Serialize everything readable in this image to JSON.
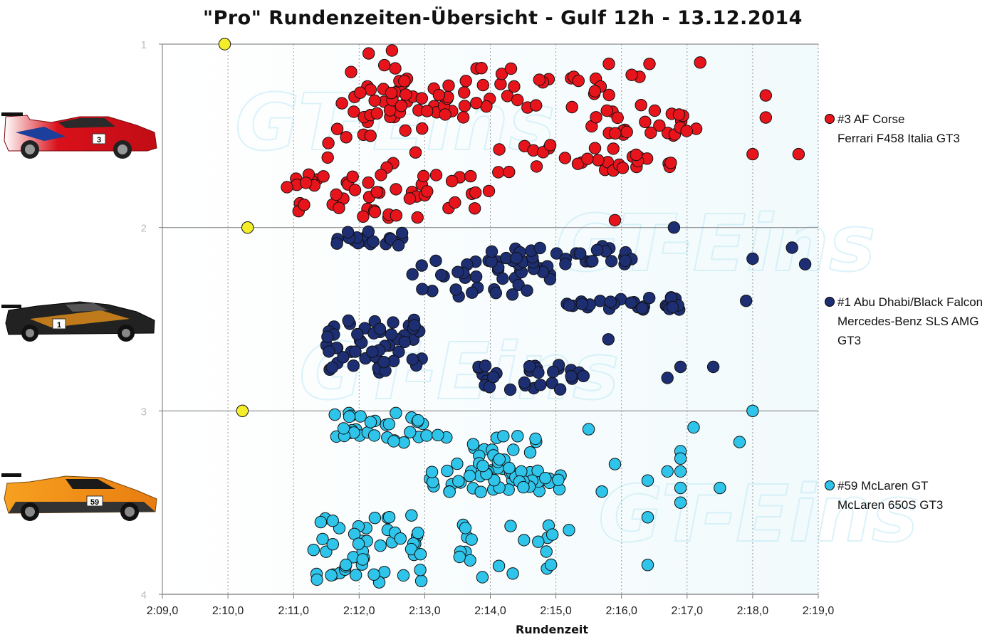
{
  "colors": {
    "af_corse": "#e8141c",
    "black_falcon": "#1d2f72",
    "mclaren": "#2fc4ea",
    "fastest": "#f4ee2a"
  },
  "chart_data": {
    "type": "scatter",
    "title": "\"Pro\" Rundenzeiten-Übersicht - Gulf 12h - 13.12.2014",
    "xlabel": "Rundenzeit",
    "ylabel": "",
    "x_ticks": [
      "2:09,0",
      "2:10,0",
      "2:11,0",
      "2:12,0",
      "2:13,0",
      "2:14,0",
      "2:15,0",
      "2:16,0",
      "2:17,0",
      "2:18,0",
      "2:19,0"
    ],
    "y_ticks": [
      "1",
      "2",
      "3",
      "4"
    ],
    "xlim_seconds": [
      129,
      139
    ],
    "ylim": [
      1,
      4
    ],
    "grid": "vertical and horizontal major gridlines",
    "legend_position": "right",
    "series": [
      {
        "key": "af_corse",
        "legend_line1": "#3 AF Corse",
        "legend_line2": "Ferrari F458 Italia GT3",
        "legend_line3": "",
        "band": [
          1,
          2
        ],
        "clusters": [
          {
            "x_min_s": 131.5,
            "x_max_s": 133.0,
            "count": 45,
            "band_pos": [
              0.03,
              0.95
            ]
          },
          {
            "x_min_s": 132.0,
            "x_max_s": 134.0,
            "count": 35,
            "band_pos": [
              0.2,
              0.4
            ]
          },
          {
            "x_min_s": 133.5,
            "x_max_s": 136.5,
            "count": 30,
            "band_pos": [
              0.1,
              0.35
            ]
          },
          {
            "x_min_s": 135.5,
            "x_max_s": 137.3,
            "count": 25,
            "band_pos": [
              0.35,
              0.5
            ]
          },
          {
            "x_min_s": 134.0,
            "x_max_s": 136.8,
            "count": 30,
            "band_pos": [
              0.55,
              0.7
            ]
          },
          {
            "x_min_s": 131.0,
            "x_max_s": 134.0,
            "count": 40,
            "band_pos": [
              0.7,
              0.95
            ]
          }
        ],
        "outliers": [
          [
            138.2,
            0.28
          ],
          [
            138.2,
            0.4
          ],
          [
            138.0,
            0.6
          ],
          [
            138.7,
            0.6
          ],
          [
            137.2,
            0.1
          ],
          [
            130.9,
            0.78
          ],
          [
            135.9,
            0.96
          ]
        ]
      },
      {
        "key": "black_falcon",
        "legend_line1": "#1 Abu Dhabi/Black Falcon",
        "legend_line2": "Mercedes-Benz SLS AMG",
        "legend_line3": "GT3",
        "band": [
          2,
          3
        ],
        "clusters": [
          {
            "x_min_s": 131.5,
            "x_max_s": 132.7,
            "count": 20,
            "band_pos": [
              0.02,
              0.1
            ]
          },
          {
            "x_min_s": 132.8,
            "x_max_s": 135.0,
            "count": 40,
            "band_pos": [
              0.18,
              0.38
            ]
          },
          {
            "x_min_s": 134.0,
            "x_max_s": 136.3,
            "count": 30,
            "band_pos": [
              0.1,
              0.2
            ]
          },
          {
            "x_min_s": 135.0,
            "x_max_s": 136.9,
            "count": 30,
            "band_pos": [
              0.38,
              0.45
            ]
          },
          {
            "x_min_s": 131.5,
            "x_max_s": 133.0,
            "count": 55,
            "band_pos": [
              0.5,
              0.8
            ]
          },
          {
            "x_min_s": 133.8,
            "x_max_s": 135.5,
            "count": 30,
            "band_pos": [
              0.75,
              0.9
            ]
          }
        ],
        "outliers": [
          [
            136.8,
            0.0
          ],
          [
            138.6,
            0.11
          ],
          [
            138.8,
            0.2
          ],
          [
            138.0,
            0.17
          ],
          [
            137.4,
            0.76
          ],
          [
            136.9,
            0.76
          ],
          [
            136.7,
            0.82
          ],
          [
            135.8,
            0.61
          ],
          [
            137.9,
            0.4
          ]
        ]
      },
      {
        "key": "mclaren",
        "legend_line1": "#59 McLaren GT",
        "legend_line2": "McLaren 650S GT3",
        "legend_line3": "",
        "band": [
          3,
          4
        ],
        "clusters": [
          {
            "x_min_s": 131.6,
            "x_max_s": 133.0,
            "count": 30,
            "band_pos": [
              0.0,
              0.18
            ]
          },
          {
            "x_min_s": 133.0,
            "x_max_s": 134.8,
            "count": 45,
            "band_pos": [
              0.12,
              0.45
            ]
          },
          {
            "x_min_s": 133.5,
            "x_max_s": 135.2,
            "count": 25,
            "band_pos": [
              0.3,
              0.45
            ]
          },
          {
            "x_min_s": 131.3,
            "x_max_s": 133.0,
            "count": 50,
            "band_pos": [
              0.55,
              0.95
            ]
          },
          {
            "x_min_s": 133.5,
            "x_max_s": 135.0,
            "count": 20,
            "band_pos": [
              0.6,
              0.92
            ]
          }
        ],
        "outliers": [
          [
            138.0,
            0.0
          ],
          [
            137.1,
            0.09
          ],
          [
            137.8,
            0.17
          ],
          [
            136.9,
            0.22
          ],
          [
            136.9,
            0.26
          ],
          [
            136.9,
            0.33
          ],
          [
            136.7,
            0.33
          ],
          [
            136.4,
            0.38
          ],
          [
            137.5,
            0.42
          ],
          [
            136.9,
            0.42
          ],
          [
            136.9,
            0.5
          ],
          [
            136.4,
            0.58
          ],
          [
            136.4,
            0.84
          ],
          [
            135.9,
            0.29
          ],
          [
            135.2,
            0.65
          ],
          [
            135.7,
            0.44
          ],
          [
            135.5,
            0.1
          ]
        ]
      }
    ],
    "fastest_laps": [
      {
        "series": "af_corse",
        "x_s": 129.95,
        "y": 1
      },
      {
        "series": "black_falcon",
        "x_s": 130.3,
        "y": 2
      },
      {
        "series": "mclaren",
        "x_s": 130.22,
        "y": 3
      }
    ]
  },
  "watermark_text": "GT-Eins"
}
